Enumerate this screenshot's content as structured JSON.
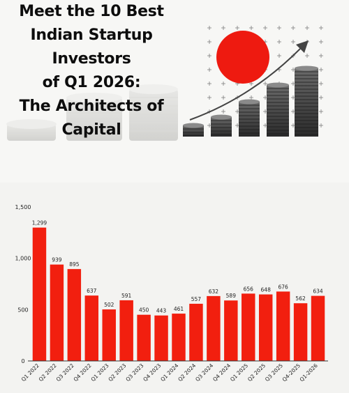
{
  "title_lines": [
    "Meet the 10 Best",
    "Indian Startup",
    "Investors",
    "of Q1 2026:",
    "The Architects of",
    "Capital"
  ],
  "colors": {
    "bar": "#f21f0f",
    "circle": "#ee1a10",
    "axis": "#333333"
  },
  "chart_data": {
    "type": "bar",
    "categories": [
      "Q1 2022",
      "Q2 2022",
      "Q3 2022",
      "Q4 2022",
      "Q1 2023",
      "Q2 2023",
      "Q3 2023",
      "Q4 2023",
      "Q1 2024",
      "Q2 2024",
      "Q3 2024",
      "Q4 2024",
      "Q1 2025",
      "Q2 2025",
      "Q3 2025",
      "Q4-2025",
      "Q1-2026"
    ],
    "values": [
      1299,
      939,
      895,
      637,
      502,
      591,
      450,
      443,
      461,
      557,
      632,
      589,
      656,
      648,
      676,
      562,
      634
    ],
    "value_labels": [
      "1,299",
      "939",
      "895",
      "637",
      "502",
      "591",
      "450",
      "443",
      "461",
      "557",
      "632",
      "589",
      "656",
      "648",
      "676",
      "562",
      "634"
    ],
    "yticks": [
      0,
      500,
      1000,
      1500
    ],
    "ytick_labels": [
      "0",
      "500",
      "1,000",
      "1,500"
    ],
    "ylim": [
      0,
      1500
    ],
    "title": "",
    "xlabel": "",
    "ylabel": ""
  }
}
